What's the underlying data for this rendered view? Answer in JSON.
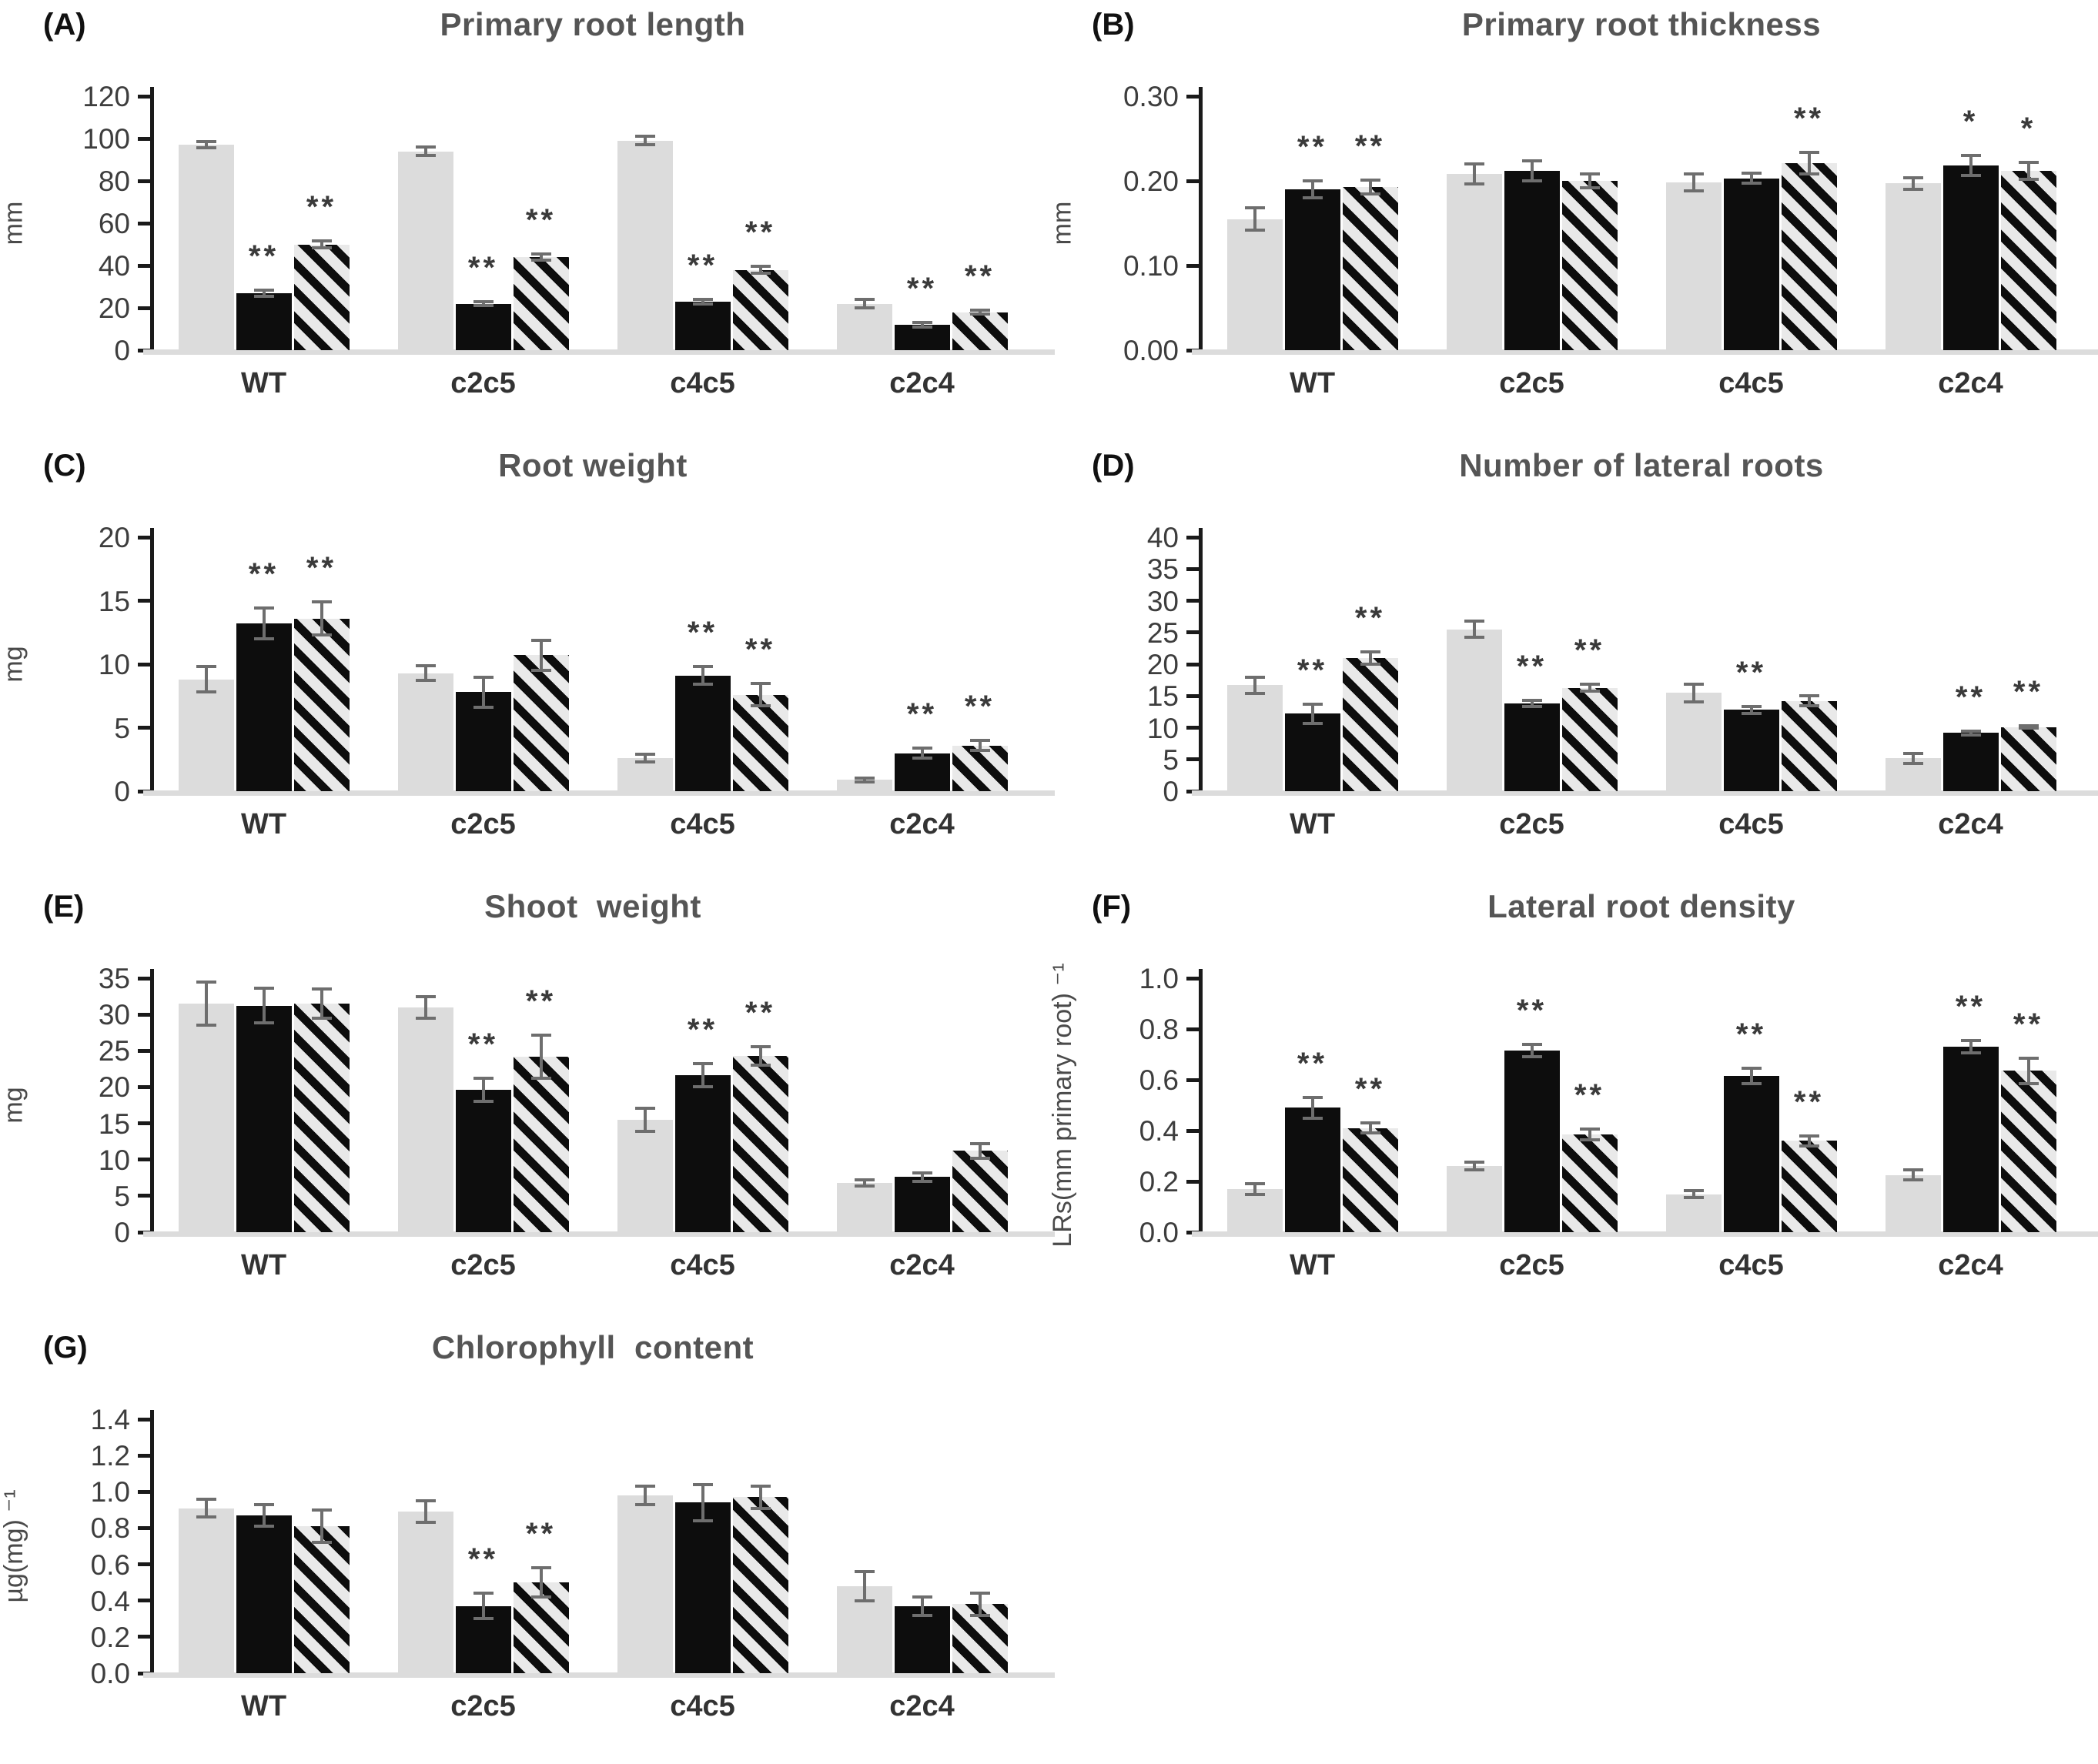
{
  "figure": {
    "background_color": "#ffffff",
    "bar_styles": {
      "gray_fill": "#dcdcdc",
      "black_fill": "#0d0d0d",
      "hatch_pattern": "black diagonal stripes on light gray",
      "error_bar_color": "#6e6e6e",
      "title_color": "#555555"
    }
  },
  "chart_data": [
    {
      "panel_id": "A",
      "panel_label": "(A)",
      "title": "Primary root length",
      "type": "bar",
      "ylabel": "mm",
      "ylim": [
        0,
        120
      ],
      "yticks": [
        0,
        20,
        40,
        60,
        80,
        100,
        120
      ],
      "ytick_labels": [
        "0",
        "20",
        "40",
        "60",
        "80",
        "100",
        "120"
      ],
      "grid": false,
      "legend": "none",
      "categories": [
        "WT",
        "c2c5",
        "c4c5",
        "c2c4"
      ],
      "series": [
        {
          "name": "gray-bar",
          "fill": "gray",
          "values": [
            97,
            94,
            99,
            22
          ],
          "errors": [
            1.5,
            2,
            2,
            2
          ],
          "sig": [
            "",
            "",
            "",
            ""
          ]
        },
        {
          "name": "black-bar",
          "fill": "black",
          "values": [
            27,
            22,
            23,
            12
          ],
          "errors": [
            1.5,
            1,
            1,
            1
          ],
          "sig": [
            "**",
            "**",
            "**",
            "**"
          ]
        },
        {
          "name": "hatched-bar",
          "fill": "hatch",
          "values": [
            50,
            44,
            38,
            18
          ],
          "errors": [
            1.5,
            1.5,
            1.5,
            1
          ],
          "sig": [
            "**",
            "**",
            "**",
            "**"
          ]
        }
      ]
    },
    {
      "panel_id": "B",
      "panel_label": "(B)",
      "title": "Primary root thickness",
      "type": "bar",
      "ylabel": "mm",
      "ylim": [
        0,
        0.3
      ],
      "yticks": [
        0,
        0.1,
        0.2,
        0.3
      ],
      "ytick_labels": [
        "0.00",
        "0.10",
        "0.20",
        "0.30"
      ],
      "grid": false,
      "legend": "none",
      "categories": [
        "WT",
        "c2c5",
        "c4c5",
        "c2c4"
      ],
      "series": [
        {
          "name": "gray-bar",
          "fill": "gray",
          "values": [
            0.155,
            0.208,
            0.198,
            0.197
          ],
          "errors": [
            0.013,
            0.012,
            0.01,
            0.007
          ],
          "sig": [
            "",
            "",
            "",
            ""
          ]
        },
        {
          "name": "black-bar",
          "fill": "black",
          "values": [
            0.19,
            0.212,
            0.203,
            0.218
          ],
          "errors": [
            0.01,
            0.012,
            0.006,
            0.012
          ],
          "sig": [
            "**",
            "",
            "",
            "*"
          ]
        },
        {
          "name": "hatched-bar",
          "fill": "hatch",
          "values": [
            0.193,
            0.2,
            0.221,
            0.212
          ],
          "errors": [
            0.008,
            0.008,
            0.013,
            0.01
          ],
          "sig": [
            "**",
            "",
            "**",
            "*"
          ]
        }
      ]
    },
    {
      "panel_id": "C",
      "panel_label": "(C)",
      "title": "Root weight",
      "type": "bar",
      "ylabel": "mg",
      "ylim": [
        0,
        20
      ],
      "yticks": [
        0,
        5,
        10,
        15,
        20
      ],
      "ytick_labels": [
        "0",
        "5",
        "10",
        "15",
        "20"
      ],
      "grid": false,
      "legend": "none",
      "categories": [
        "WT",
        "c2c5",
        "c4c5",
        "c2c4"
      ],
      "series": [
        {
          "name": "gray-bar",
          "fill": "gray",
          "values": [
            8.8,
            9.3,
            2.6,
            0.9
          ],
          "errors": [
            1.0,
            0.6,
            0.3,
            0.15
          ],
          "sig": [
            "",
            "",
            "",
            ""
          ]
        },
        {
          "name": "black-bar",
          "fill": "black",
          "values": [
            13.2,
            7.8,
            9.1,
            3.0
          ],
          "errors": [
            1.2,
            1.2,
            0.7,
            0.4
          ],
          "sig": [
            "**",
            "",
            "**",
            "**"
          ]
        },
        {
          "name": "hatched-bar",
          "fill": "hatch",
          "values": [
            13.6,
            10.7,
            7.6,
            3.6
          ],
          "errors": [
            1.3,
            1.2,
            0.9,
            0.4
          ],
          "sig": [
            "**",
            "",
            "**",
            "**"
          ]
        }
      ]
    },
    {
      "panel_id": "D",
      "panel_label": "(D)",
      "title": "Number of lateral roots",
      "type": "bar",
      "ylabel": "",
      "ylim": [
        0,
        40
      ],
      "yticks": [
        0,
        5,
        10,
        15,
        20,
        25,
        30,
        35,
        40
      ],
      "ytick_labels": [
        "0",
        "5",
        "10",
        "15",
        "20",
        "25",
        "30",
        "35",
        "40"
      ],
      "grid": false,
      "legend": "none",
      "categories": [
        "WT",
        "c2c5",
        "c4c5",
        "c2c4"
      ],
      "series": [
        {
          "name": "gray-bar",
          "fill": "gray",
          "values": [
            16.7,
            25.5,
            15.5,
            5.2
          ],
          "errors": [
            1.3,
            1.3,
            1.4,
            0.8
          ],
          "sig": [
            "",
            "",
            "",
            ""
          ]
        },
        {
          "name": "black-bar",
          "fill": "black",
          "values": [
            12.2,
            13.8,
            12.8,
            9.2
          ],
          "errors": [
            1.5,
            0.5,
            0.5,
            0.3
          ],
          "sig": [
            "**",
            "**",
            "**",
            "**"
          ]
        },
        {
          "name": "hatched-bar",
          "fill": "hatch",
          "values": [
            21.0,
            16.3,
            14.2,
            10.1
          ],
          "errors": [
            1.0,
            0.5,
            0.8,
            0.2
          ],
          "sig": [
            "**",
            "**",
            "",
            "**"
          ]
        }
      ]
    },
    {
      "panel_id": "E",
      "panel_label": "(E)",
      "title": "Shoot  weight",
      "type": "bar",
      "ylabel": "mg",
      "ylim": [
        0,
        35
      ],
      "yticks": [
        0,
        5,
        10,
        15,
        20,
        25,
        30,
        35
      ],
      "ytick_labels": [
        "0",
        "5",
        "10",
        "15",
        "20",
        "25",
        "30",
        "35"
      ],
      "grid": false,
      "legend": "none",
      "categories": [
        "WT",
        "c2c5",
        "c4c5",
        "c2c4"
      ],
      "series": [
        {
          "name": "gray-bar",
          "fill": "gray",
          "values": [
            31.5,
            31.0,
            15.5,
            6.8
          ],
          "errors": [
            3.0,
            1.5,
            1.6,
            0.4
          ],
          "sig": [
            "",
            "",
            "",
            ""
          ]
        },
        {
          "name": "black-bar",
          "fill": "black",
          "values": [
            31.2,
            19.6,
            21.6,
            7.6
          ],
          "errors": [
            2.4,
            1.6,
            1.6,
            0.6
          ],
          "sig": [
            "",
            "**",
            "**",
            ""
          ]
        },
        {
          "name": "hatched-bar",
          "fill": "hatch",
          "values": [
            31.5,
            24.2,
            24.3,
            11.2
          ],
          "errors": [
            2.0,
            3.0,
            1.3,
            1.0
          ],
          "sig": [
            "",
            "**",
            "**",
            ""
          ]
        }
      ]
    },
    {
      "panel_id": "F",
      "panel_label": "(F)",
      "title": "Lateral root density",
      "type": "bar",
      "ylabel": "LRs(mm primary root) ⁻¹",
      "ylim": [
        0,
        1.0
      ],
      "yticks": [
        0,
        0.2,
        0.4,
        0.6,
        0.8,
        1.0
      ],
      "ytick_labels": [
        "0.0",
        "0.2",
        "0.4",
        "0.6",
        "0.8",
        "1.0"
      ],
      "grid": false,
      "legend": "none",
      "categories": [
        "WT",
        "c2c5",
        "c4c5",
        "c2c4"
      ],
      "series": [
        {
          "name": "gray-bar",
          "fill": "gray",
          "values": [
            0.17,
            0.26,
            0.15,
            0.225
          ],
          "errors": [
            0.02,
            0.015,
            0.015,
            0.02
          ],
          "sig": [
            "",
            "",
            "",
            ""
          ]
        },
        {
          "name": "black-bar",
          "fill": "black",
          "values": [
            0.49,
            0.715,
            0.615,
            0.73
          ],
          "errors": [
            0.04,
            0.025,
            0.03,
            0.025
          ],
          "sig": [
            "**",
            "**",
            "**",
            "**"
          ]
        },
        {
          "name": "hatched-bar",
          "fill": "hatch",
          "values": [
            0.41,
            0.385,
            0.36,
            0.635
          ],
          "errors": [
            0.02,
            0.02,
            0.02,
            0.05
          ],
          "sig": [
            "**",
            "**",
            "**",
            "**"
          ]
        }
      ]
    },
    {
      "panel_id": "G",
      "panel_label": "(G)",
      "title": "Chlorophyll  content",
      "type": "bar",
      "ylabel": "µg(mg) ⁻¹",
      "ylim": [
        0,
        1.4
      ],
      "yticks": [
        0,
        0.2,
        0.4,
        0.6,
        0.8,
        1.0,
        1.2,
        1.4
      ],
      "ytick_labels": [
        "0.0",
        "0.2",
        "0.4",
        "0.6",
        "0.8",
        "1.0",
        "1.2",
        "1.4"
      ],
      "grid": false,
      "legend": "none",
      "categories": [
        "WT",
        "c2c5",
        "c4c5",
        "c2c4"
      ],
      "series": [
        {
          "name": "gray-bar",
          "fill": "gray",
          "values": [
            0.91,
            0.89,
            0.98,
            0.48
          ],
          "errors": [
            0.05,
            0.06,
            0.05,
            0.08
          ],
          "sig": [
            "",
            "",
            "",
            ""
          ]
        },
        {
          "name": "black-bar",
          "fill": "black",
          "values": [
            0.87,
            0.37,
            0.94,
            0.37
          ],
          "errors": [
            0.06,
            0.07,
            0.1,
            0.05
          ],
          "sig": [
            "",
            "**",
            "",
            ""
          ]
        },
        {
          "name": "hatched-bar",
          "fill": "hatch",
          "values": [
            0.81,
            0.5,
            0.97,
            0.38
          ],
          "errors": [
            0.09,
            0.08,
            0.06,
            0.06
          ],
          "sig": [
            "",
            "**",
            "",
            ""
          ]
        }
      ]
    }
  ]
}
